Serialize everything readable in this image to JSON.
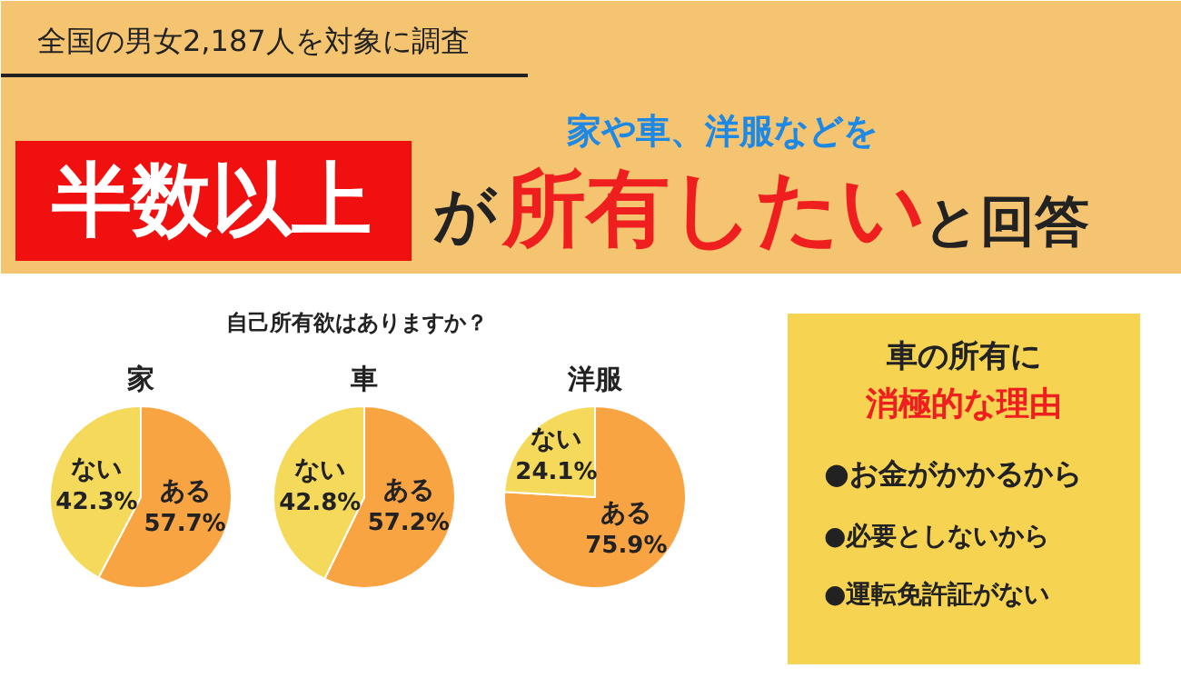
{
  "chart_data": [
    {
      "type": "other",
      "title": "全国の男女2,187人を対象に調査",
      "annotations": [
        "半数以上",
        "家や車、洋服などを",
        "が",
        "所有したい",
        "と回答",
        "自己所有欲はありますか？"
      ]
    },
    {
      "type": "pie",
      "title": "家",
      "categories": [
        "ある",
        "ない"
      ],
      "values": [
        57.7,
        42.3
      ],
      "colors": [
        "#f9a443",
        "#f5d95a"
      ],
      "value_labels": [
        "57.7%",
        "42.3%"
      ]
    },
    {
      "type": "pie",
      "title": "車",
      "categories": [
        "ある",
        "ない"
      ],
      "values": [
        57.2,
        42.8
      ],
      "colors": [
        "#f9a443",
        "#f5d95a"
      ],
      "value_labels": [
        "57.2%",
        "42.8%"
      ]
    },
    {
      "type": "pie",
      "title": "洋服",
      "categories": [
        "ある",
        "ない"
      ],
      "values": [
        75.9,
        24.1
      ],
      "colors": [
        "#f9a443",
        "#f5d95a"
      ],
      "value_labels": [
        "75.9%",
        "24.1%"
      ]
    },
    {
      "type": "other",
      "title": "車の所有に",
      "subtitle": "消極的な理由",
      "annotations": [
        "●お金がかかるから",
        "●必要としないから",
        "●運転免許証がない"
      ]
    }
  ]
}
